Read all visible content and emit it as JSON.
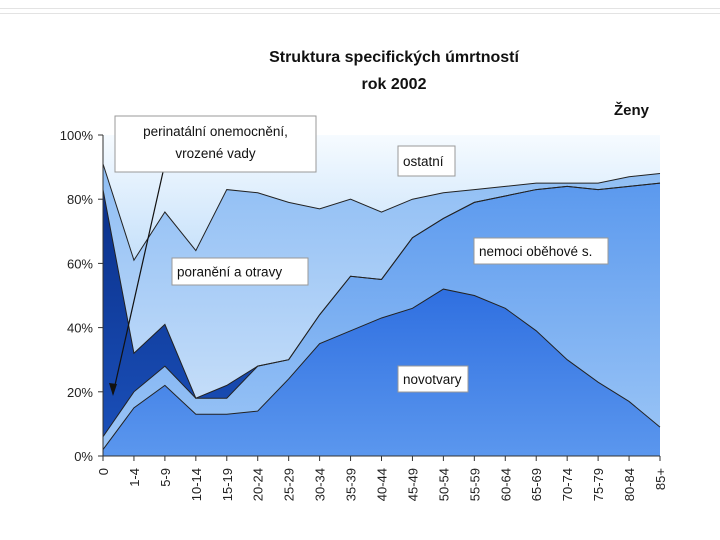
{
  "chart_data": {
    "type": "area",
    "stacked": true,
    "normalized_percent": true,
    "title": "Struktura specifických úmrtností",
    "subtitle": "rok 2002",
    "corner_label": "Ženy",
    "xlabel": "",
    "ylabel": "",
    "ylim": [
      0,
      100
    ],
    "y_ticks": [
      "0%",
      "20%",
      "40%",
      "60%",
      "80%",
      "100%"
    ],
    "categories": [
      "0",
      "1-4",
      "5-9",
      "10-14",
      "15-19",
      "20-24",
      "25-29",
      "30-34",
      "35-39",
      "40-44",
      "45-49",
      "50-54",
      "55-59",
      "60-64",
      "65-69",
      "70-74",
      "75-79",
      "80-84",
      "85+"
    ],
    "series": [
      {
        "name": "novotvary",
        "color": "#3d7ee6",
        "values": [
          2,
          15,
          22,
          13,
          13,
          14,
          24,
          35,
          39,
          43,
          46,
          52,
          50,
          46,
          39,
          30,
          23,
          17,
          9
        ]
      },
      {
        "name": "nemoci oběhové s.",
        "color": "#74aaf0",
        "values": [
          4,
          5,
          6,
          5,
          5,
          14,
          6,
          9,
          17,
          12,
          22,
          22,
          29,
          35,
          44,
          54,
          60,
          67,
          76
        ]
      },
      {
        "name": "perinatální onemocnění, vrozené vady",
        "color": "#0c3c9c",
        "values": [
          77,
          12,
          13,
          0,
          4,
          0,
          0,
          0,
          0,
          0,
          0,
          0,
          0,
          0,
          0,
          0,
          0,
          0,
          0
        ]
      },
      {
        "name": "poranění a otravy",
        "color": "#a9cdf6",
        "values": [
          8,
          29,
          35,
          46,
          61,
          54,
          49,
          33,
          24,
          21,
          12,
          8,
          4,
          3,
          2,
          1,
          2,
          3,
          3
        ]
      },
      {
        "name": "ostatní",
        "color": "#d6eafc",
        "values": [
          9,
          39,
          24,
          36,
          17,
          18,
          21,
          23,
          20,
          24,
          20,
          18,
          17,
          16,
          15,
          15,
          15,
          13,
          12
        ]
      }
    ],
    "legend": "inline labels",
    "grid": false
  }
}
